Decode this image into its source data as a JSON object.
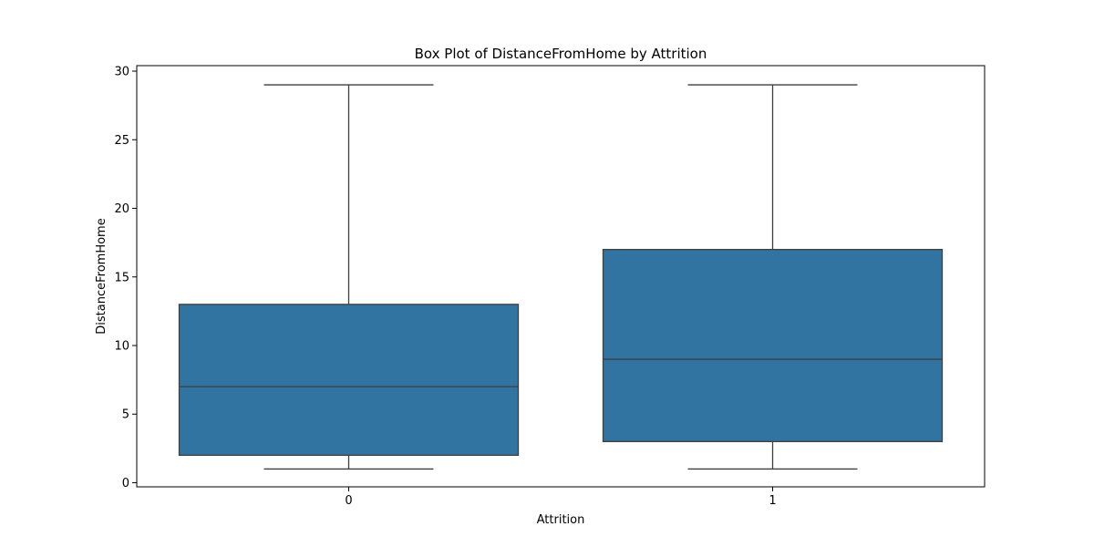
{
  "chart_data": {
    "type": "box",
    "title": "Box Plot of DistanceFromHome by Attrition",
    "xlabel": "Attrition",
    "ylabel": "DistanceFromHome",
    "categories": [
      "0",
      "1"
    ],
    "ylim": [
      -0.3,
      30.4
    ],
    "yticks": [
      0,
      5,
      10,
      15,
      20,
      25,
      30
    ],
    "grid": false,
    "legend": "none",
    "colors": {
      "box": "#3274a1",
      "line": "#3f3f3f"
    },
    "boxes": [
      {
        "category": "0",
        "whisker_low": 1,
        "q1": 2,
        "median": 7,
        "q3": 13,
        "whisker_high": 29
      },
      {
        "category": "1",
        "whisker_low": 1,
        "q1": 3,
        "median": 9,
        "q3": 17,
        "whisker_high": 29
      }
    ]
  }
}
